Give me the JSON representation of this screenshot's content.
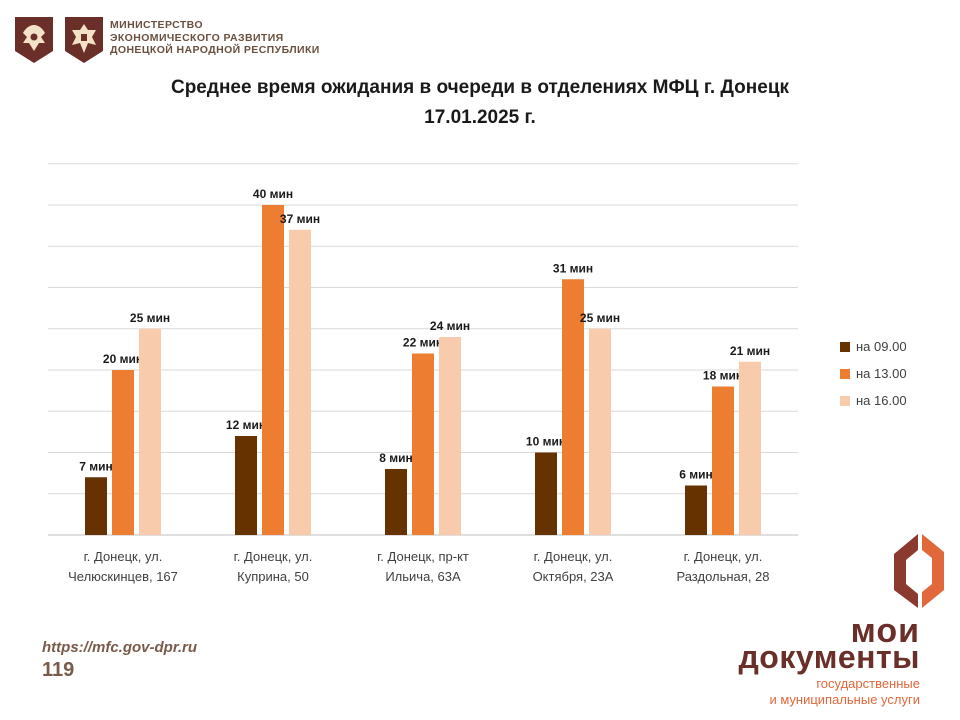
{
  "header": {
    "ministry_lines": [
      "МИНИСТЕРСТВО",
      "ЭКОНОМИЧЕСКОГО РАЗВИТИЯ",
      "ДОНЕЦКОЙ НАРОДНОЙ РЕСПУБЛИКИ"
    ]
  },
  "footer": {
    "url": "https://mfc.gov-dpr.ru",
    "page": "119",
    "brand_line1": "мои",
    "brand_line2": "документы",
    "brand_sub1": "государственные",
    "brand_sub2": "и муниципальные услуги"
  },
  "colors": {
    "series_0900": "#663300",
    "series_1300": "#ed7d31",
    "series_1600": "#f8cbad",
    "brand_dark": "#6b2f2a",
    "brand_orange": "#e0683a"
  },
  "chart_data": {
    "type": "bar",
    "title": "Среднее время ожидания в очереди в отделениях МФЦ г. Донецк",
    "subtitle": "17.01.2025 г.",
    "categories": [
      [
        "г. Донецк, ул.",
        "Челюскинцев, 167"
      ],
      [
        "г. Донецк, ул.",
        "Куприна, 50"
      ],
      [
        "г. Донецк, пр-кт",
        "Ильича, 63А"
      ],
      [
        "г. Донецк, ул.",
        "Октября, 23А"
      ],
      [
        "г. Донецк, ул.",
        "Раздольная, 28"
      ]
    ],
    "series": [
      {
        "name": "на 09.00",
        "values": [
          7,
          12,
          8,
          10,
          6
        ],
        "color": "#663300"
      },
      {
        "name": "на 13.00",
        "values": [
          20,
          40,
          22,
          31,
          18
        ],
        "color": "#ed7d31"
      },
      {
        "name": "на 16.00",
        "values": [
          25,
          37,
          24,
          25,
          21
        ],
        "color": "#f8cbad"
      }
    ],
    "value_suffix": " мин",
    "ylim": [
      0,
      45
    ],
    "grid": true,
    "legend": "right"
  }
}
